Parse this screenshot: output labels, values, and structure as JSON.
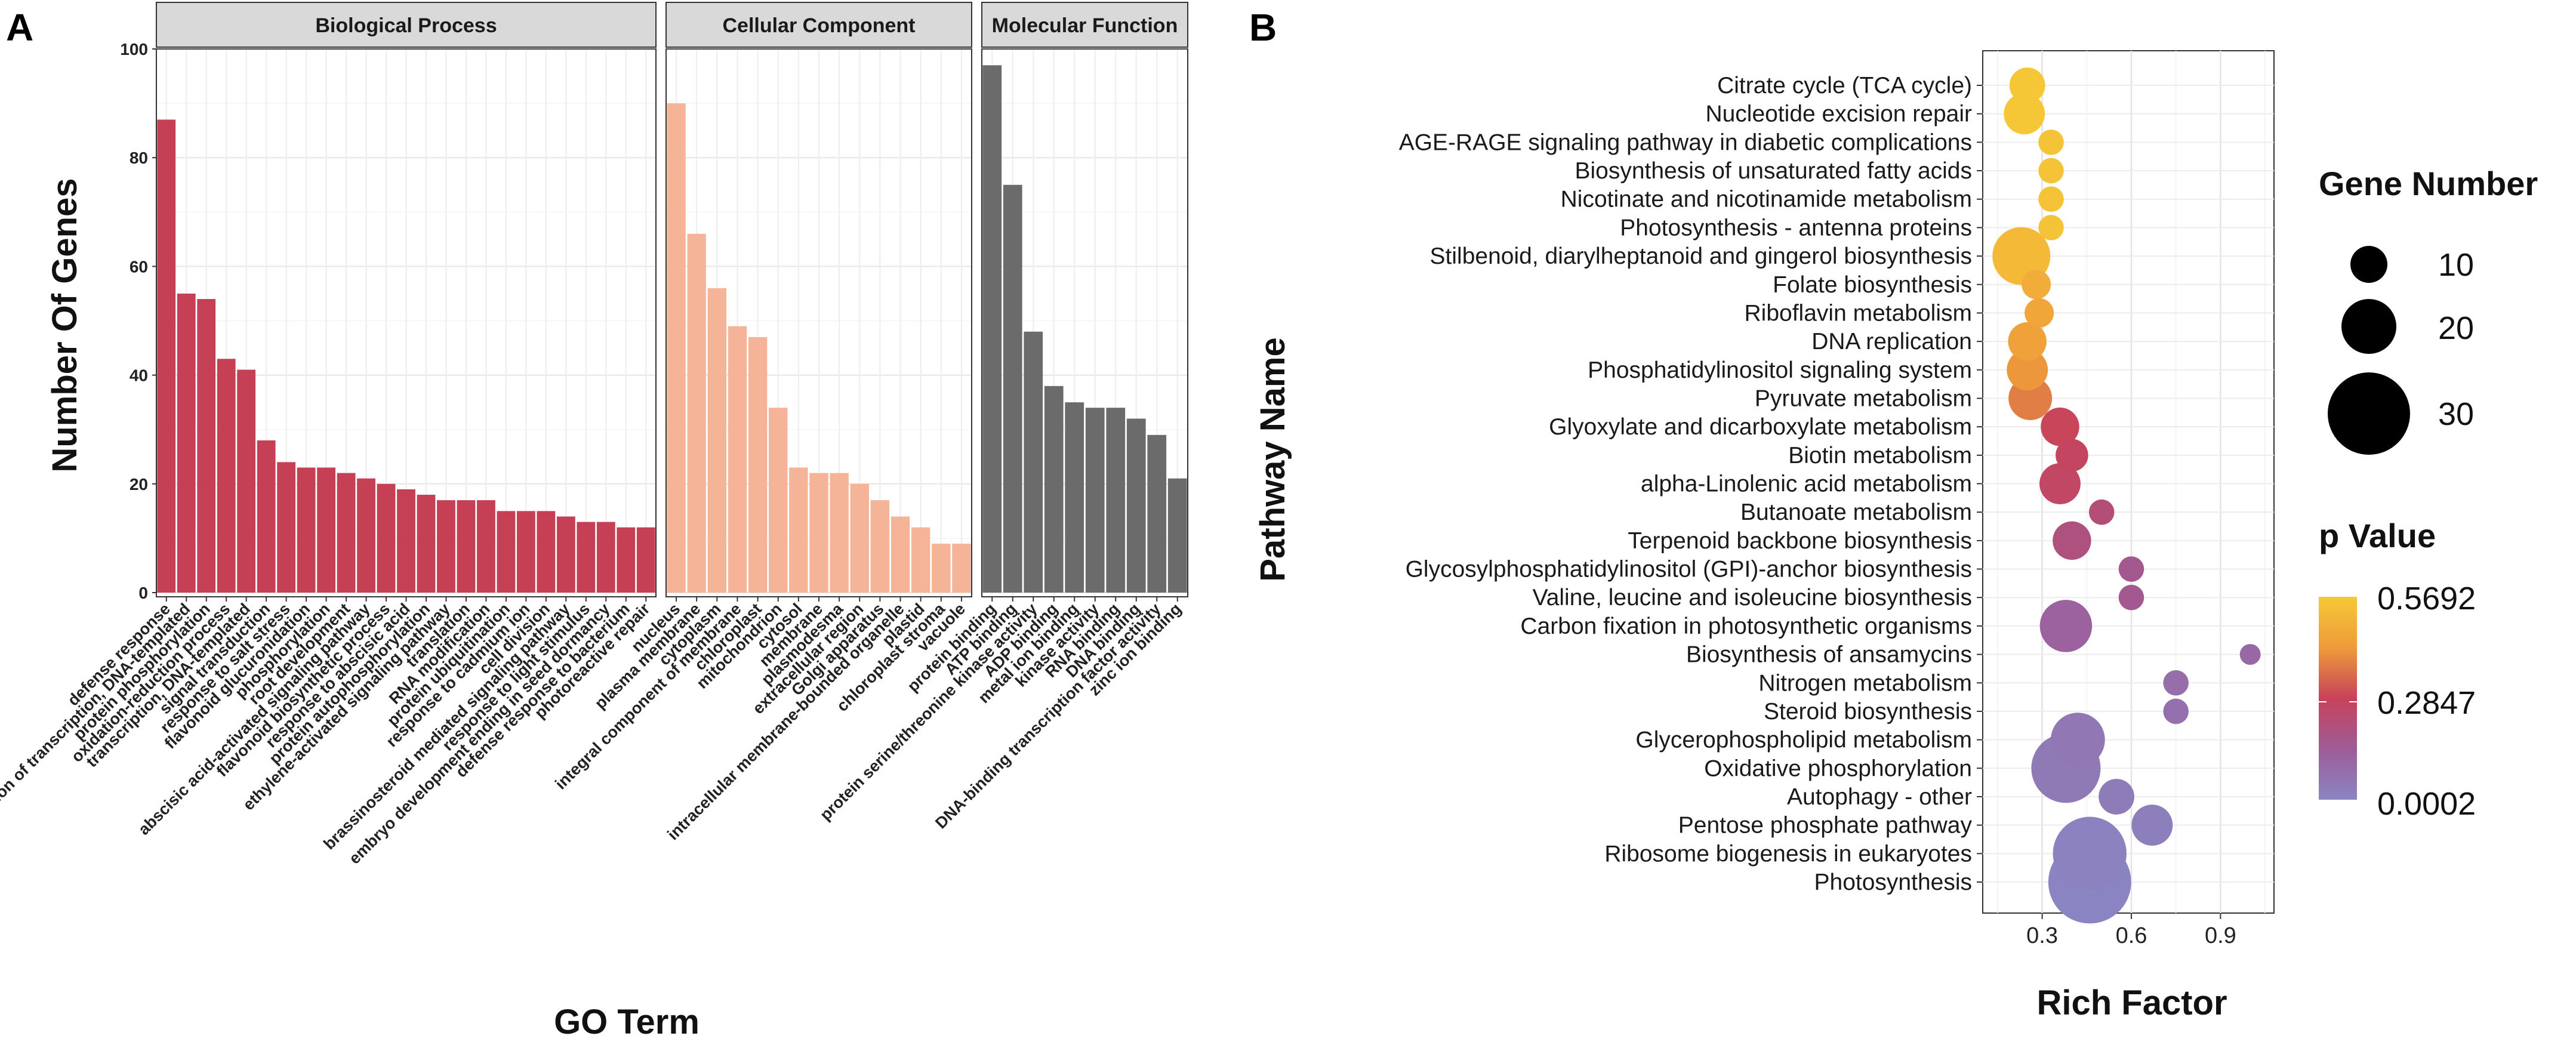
{
  "chart_data": [
    {
      "type": "bar",
      "panel_label": "A",
      "xlabel": "GO Term",
      "ylabel": "Number Of Genes",
      "ylim": [
        0,
        100
      ],
      "yticks": [
        "0",
        "20",
        "40",
        "60",
        "80",
        "100"
      ],
      "facets": [
        {
          "name": "Biological Process",
          "color": "#C53F55",
          "categories": [
            "defense response",
            "regulation of transcription, DNA-templated",
            "protein phosphorylation",
            "oxidation-reduction process",
            "transcription, DNA-templated",
            "signal transduction",
            "response to salt stress",
            "flavonoid glucuronidation",
            "phosphorylation",
            "root development",
            "abscisic acid-activated signaling pathway",
            "flavonoid biosynthetic process",
            "response to abscisic acid",
            "protein autophosphorylation",
            "ethylene-activated signaling pathway",
            "translation",
            "RNA modification",
            "protein ubiquitination",
            "response to cadmium ion",
            "cell division",
            "brassinosteroid mediated signaling pathway",
            "response to light stimulus",
            "embryo development ending in seed dormancy",
            "defense response to bacterium",
            "photoreactive repair"
          ],
          "values": [
            87,
            55,
            54,
            43,
            41,
            28,
            24,
            23,
            23,
            22,
            21,
            20,
            19,
            18,
            17,
            17,
            17,
            15,
            15,
            15,
            14,
            13,
            13,
            12,
            12
          ]
        },
        {
          "name": "Cellular Component",
          "color": "#F5B498",
          "categories": [
            "nucleus",
            "plasma membrane",
            "cytoplasm",
            "integral component of membrane",
            "chloroplast",
            "mitochondrion",
            "cytosol",
            "membrane",
            "plasmodesma",
            "extracellular region",
            "Golgi apparatus",
            "intracellular membrane-bounded organelle",
            "plastid",
            "chloroplast stroma",
            "vacuole"
          ],
          "values": [
            90,
            66,
            56,
            49,
            47,
            34,
            23,
            22,
            22,
            20,
            17,
            14,
            12,
            9,
            9
          ]
        },
        {
          "name": "Molecular Function",
          "color": "#6B6B6B",
          "categories": [
            "protein binding",
            "ATP binding",
            "protein serine/threonine kinase activity",
            "ADP binding",
            "metal ion binding",
            "kinase activity",
            "RNA binding",
            "DNA binding",
            "DNA-binding transcription factor activity",
            "zinc ion binding"
          ],
          "values": [
            97,
            75,
            48,
            38,
            35,
            34,
            34,
            32,
            29,
            21
          ]
        }
      ]
    },
    {
      "type": "scatter",
      "panel_label": "B",
      "xlabel": "Rich Factor",
      "ylabel": "Pathway Name",
      "xlim": [
        0.1,
        1.08
      ],
      "xticks": [
        "0.3",
        "0.6",
        "0.9"
      ],
      "points": [
        {
          "name": "Citrate cycle (TCA cycle)",
          "rich_factor": 0.25,
          "gene_number": 6,
          "p_value": 0.56
        },
        {
          "name": "Nucleotide excision repair",
          "rich_factor": 0.24,
          "gene_number": 8,
          "p_value": 0.56
        },
        {
          "name": "AGE-RAGE signaling pathway in diabetic complications",
          "rich_factor": 0.33,
          "gene_number": 3,
          "p_value": 0.55
        },
        {
          "name": "Biosynthesis of unsaturated fatty acids",
          "rich_factor": 0.33,
          "gene_number": 3,
          "p_value": 0.55
        },
        {
          "name": "Nicotinate and nicotinamide metabolism",
          "rich_factor": 0.33,
          "gene_number": 3,
          "p_value": 0.55
        },
        {
          "name": "Photosynthesis - antenna proteins",
          "rich_factor": 0.33,
          "gene_number": 3,
          "p_value": 0.55
        },
        {
          "name": "Stilbenoid, diarylheptanoid and gingerol biosynthesis",
          "rich_factor": 0.23,
          "gene_number": 16,
          "p_value": 0.52
        },
        {
          "name": "Folate biosynthesis",
          "rich_factor": 0.28,
          "gene_number": 4,
          "p_value": 0.48
        },
        {
          "name": "Riboflavin metabolism",
          "rich_factor": 0.29,
          "gene_number": 4,
          "p_value": 0.46
        },
        {
          "name": "DNA replication",
          "rich_factor": 0.25,
          "gene_number": 7,
          "p_value": 0.45
        },
        {
          "name": "Phosphatidylinositol signaling system",
          "rich_factor": 0.25,
          "gene_number": 8,
          "p_value": 0.42
        },
        {
          "name": "Pyruvate metabolism",
          "rich_factor": 0.26,
          "gene_number": 9,
          "p_value": 0.38
        },
        {
          "name": "Glyoxylate and dicarboxylate metabolism",
          "rich_factor": 0.36,
          "gene_number": 7,
          "p_value": 0.29
        },
        {
          "name": "Biotin metabolism",
          "rich_factor": 0.4,
          "gene_number": 5,
          "p_value": 0.27
        },
        {
          "name": "alpha-Linolenic acid metabolism",
          "rich_factor": 0.36,
          "gene_number": 8,
          "p_value": 0.26
        },
        {
          "name": "Butanoate metabolism",
          "rich_factor": 0.5,
          "gene_number": 3,
          "p_value": 0.22
        },
        {
          "name": "Terpenoid backbone biosynthesis",
          "rich_factor": 0.4,
          "gene_number": 7,
          "p_value": 0.2
        },
        {
          "name": "Glycosylphosphatidylinositol (GPI)-anchor biosynthesis",
          "rich_factor": 0.6,
          "gene_number": 3,
          "p_value": 0.16
        },
        {
          "name": "Valine, leucine and isoleucine biosynthesis",
          "rich_factor": 0.6,
          "gene_number": 3,
          "p_value": 0.16
        },
        {
          "name": "Carbon fixation in photosynthetic organisms",
          "rich_factor": 0.38,
          "gene_number": 13,
          "p_value": 0.12
        },
        {
          "name": "Biosynthesis of ansamycins",
          "rich_factor": 1.0,
          "gene_number": 2,
          "p_value": 0.1
        },
        {
          "name": "Nitrogen metabolism",
          "rich_factor": 0.75,
          "gene_number": 3,
          "p_value": 0.08
        },
        {
          "name": "Steroid biosynthesis",
          "rich_factor": 0.75,
          "gene_number": 3,
          "p_value": 0.07
        },
        {
          "name": "Glycerophospholipid metabolism",
          "rich_factor": 0.42,
          "gene_number": 14,
          "p_value": 0.05
        },
        {
          "name": "Oxidative phosphorylation",
          "rich_factor": 0.38,
          "gene_number": 23,
          "p_value": 0.04
        },
        {
          "name": "Autophagy - other",
          "rich_factor": 0.55,
          "gene_number": 6,
          "p_value": 0.03
        },
        {
          "name": "Pentose phosphate pathway",
          "rich_factor": 0.67,
          "gene_number": 8,
          "p_value": 0.02
        },
        {
          "name": "Ribosome biogenesis in eukaryotes",
          "rich_factor": 0.46,
          "gene_number": 26,
          "p_value": 0.01
        },
        {
          "name": "Photosynthesis",
          "rich_factor": 0.46,
          "gene_number": 33,
          "p_value": 0.0002
        }
      ],
      "legend": {
        "size_title": "Gene Number",
        "size_values": [
          "10",
          "20",
          "30"
        ],
        "color_title": "p Value",
        "color_labels": [
          "0.5692",
          "0.2847",
          "0.0002"
        ],
        "p_max": 0.5692,
        "p_min": 0.0002,
        "gradient_colors": [
          "#F6C936",
          "#EE9B3A",
          "#C8425A",
          "#9E5C98",
          "#8A85C2"
        ]
      }
    }
  ]
}
